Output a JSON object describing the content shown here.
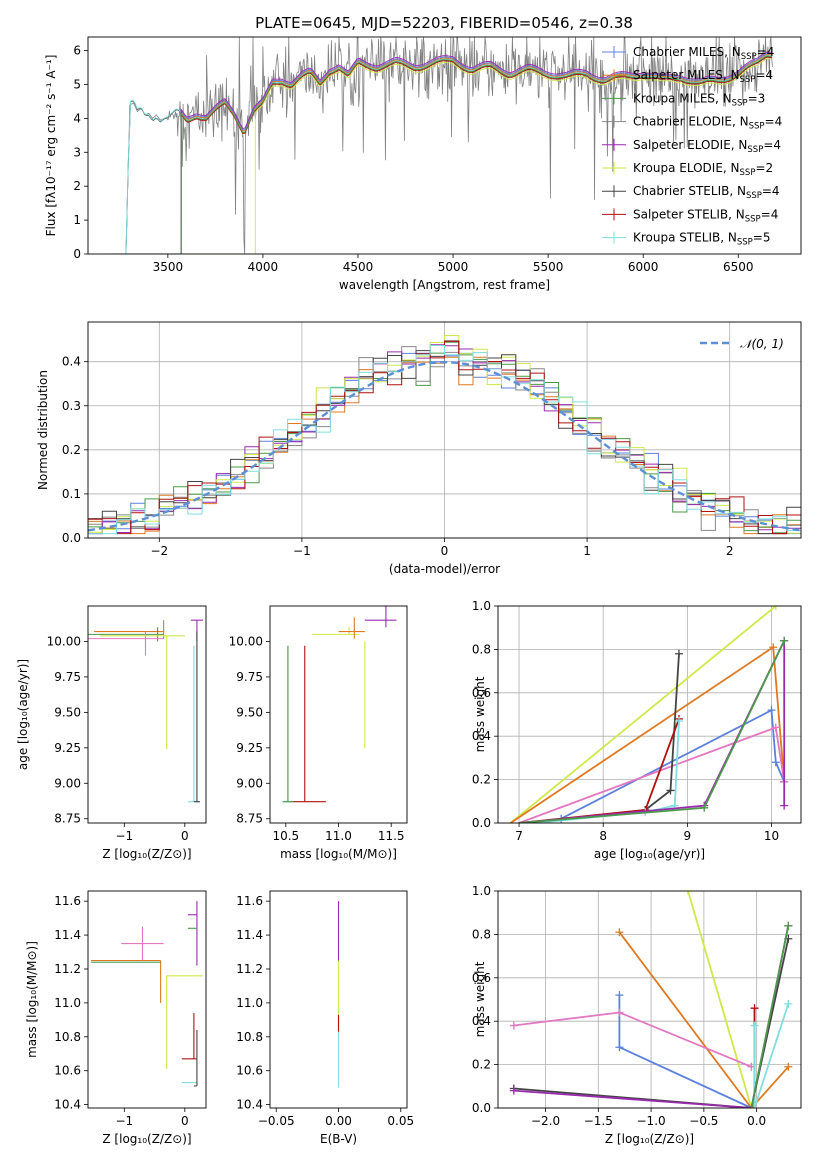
{
  "figure_title": "PLATE=0645, MJD=52203, FIBERID=0546, z=0.38",
  "colors": {
    "chabrier_miles": "#5b80dd",
    "salpeter_miles": "#e07820",
    "kroupa_miles": "#4a9a4a",
    "chabrier_elodie": "#888888",
    "salpeter_elodie": "#9b2ab0",
    "kroupa_elodie": "#cfe84a",
    "chabrier_stelib": "#444444",
    "salpeter_stelib": "#b01010",
    "kroupa_stelib": "#80dde0",
    "pink": "#e377c2",
    "normal": "#5b8fd6"
  },
  "chart_data": [
    {
      "id": "spectrum",
      "type": "line",
      "xlabel": "wavelength [Angstrom, rest frame]",
      "ylabel": "Flux [fλ10⁻¹⁷ erg cm⁻² s⁻¹ A⁻¹]",
      "xlim": [
        3080,
        6830
      ],
      "ylim": [
        0,
        6.4
      ],
      "xticks": [
        3500,
        4000,
        4500,
        5000,
        5500,
        6000,
        6500
      ],
      "yticks": [
        0,
        1,
        2,
        3,
        4,
        5,
        6
      ],
      "legend_position": "top-right",
      "legend": [
        {
          "name": "Chabrier MILES, NSSP=4",
          "color": "#5b80dd"
        },
        {
          "name": "Salpeter MILES, NSSP=4",
          "color": "#e07820"
        },
        {
          "name": "Kroupa MILES, NSSP=3",
          "color": "#4a9a4a"
        },
        {
          "name": "Chabrier ELODIE, NSSP=4",
          "color": "#888888"
        },
        {
          "name": "Salpeter ELODIE, NSSP=4",
          "color": "#9b2ab0"
        },
        {
          "name": "Kroupa ELODIE, NSSP=2",
          "color": "#cfe84a"
        },
        {
          "name": "Chabrier STELIB, NSSP=4",
          "color": "#444444"
        },
        {
          "name": "Salpeter STELIB, NSSP=4",
          "color": "#b01010"
        },
        {
          "name": "Kroupa STELIB, NSSP=5",
          "color": "#80dde0"
        }
      ],
      "model_curve": {
        "x": [
          3200,
          3280,
          3300,
          3320,
          3340,
          3360,
          3380,
          3400,
          3420,
          3440,
          3460,
          3480,
          3500,
          3550,
          3600,
          3650,
          3700,
          3750,
          3800,
          3850,
          3900,
          3950,
          4000,
          4050,
          4100,
          4150,
          4200,
          4250,
          4300,
          4350,
          4400,
          4450,
          4500,
          4600,
          4700,
          4800,
          4900,
          5000,
          5100,
          5200,
          5300,
          5400,
          5500,
          5600,
          5700,
          5800,
          5900,
          6000,
          6100,
          6200,
          6300,
          6400,
          6500,
          6600,
          6650
        ],
        "y": [
          0,
          0,
          4.4,
          4.45,
          4.2,
          4.3,
          4.1,
          4.15,
          4.0,
          4.1,
          3.95,
          4.0,
          4.0,
          4.2,
          3.9,
          4.1,
          4.0,
          4.2,
          4.4,
          4.1,
          3.6,
          4.2,
          4.4,
          5.0,
          5.1,
          5.0,
          5.2,
          5.3,
          5.0,
          5.4,
          5.5,
          5.2,
          5.6,
          5.5,
          5.6,
          5.5,
          5.6,
          5.7,
          5.4,
          5.5,
          5.3,
          5.4,
          5.3,
          5.2,
          5.3,
          5.1,
          5.2,
          5.3,
          5.1,
          5.2,
          5.0,
          5.1,
          5.3,
          5.6,
          5.9
        ]
      },
      "model_starts": {
        "chabrier_stelib": 3280,
        "salpeter": 3570,
        "kroupa_elodie": 3960
      }
    },
    {
      "id": "residuals",
      "type": "line",
      "xlabel": "(data-model)/error",
      "ylabel": "Normed distribution",
      "xlim": [
        -2.5,
        2.5
      ],
      "ylim": [
        0,
        0.49
      ],
      "xticks": [
        -2,
        -1,
        0,
        1,
        2
      ],
      "yticks": [
        0.0,
        0.1,
        0.2,
        0.3,
        0.4
      ],
      "grid": true,
      "legend_position": "top-right",
      "legend": [
        {
          "name": "𝒩(0, 1)",
          "color": "#5b8fd6",
          "style": "dashed"
        }
      ],
      "bin_width": 0.1
    },
    {
      "id": "age-vs-Z",
      "type": "scatter",
      "xlabel": "Z [log₁₀(Z/Z⊙)]",
      "ylabel": "age  [log₁₀(age/yr)]",
      "xlim": [
        -1.6,
        0.35
      ],
      "ylim": [
        8.72,
        10.25
      ],
      "xticks": [
        -1,
        0
      ],
      "yticks": [
        8.75,
        9.0,
        9.25,
        9.5,
        9.75,
        10.0
      ],
      "points": [
        {
          "x": -0.35,
          "y": 10.07,
          "x_err": [
            1.15,
            0.0
          ],
          "y_err": [
            0.05,
            0.08
          ],
          "color": "#e07820"
        },
        {
          "x": -0.45,
          "y": 10.05,
          "x_err": [
            1.15,
            0.1
          ],
          "y_err": [
            0.05,
            0.05
          ],
          "color": "#4a9a4a"
        },
        {
          "x": -0.65,
          "y": 10.02,
          "x_err": [
            0.95,
            0.3
          ],
          "y_err": [
            0.12,
            0.05
          ],
          "color": "#e377c2"
        },
        {
          "x": -0.3,
          "y": 10.04,
          "x_err": [
            1.1,
            0.3
          ],
          "y_err": [
            0.8,
            0.0
          ],
          "color": "#cfe84a"
        },
        {
          "x": 0.2,
          "y": 10.15,
          "x_err": [
            0.1,
            0.1
          ],
          "y_err": [
            0.15,
            0.0
          ],
          "color": "#9b2ab0"
        },
        {
          "x": 0.15,
          "y": 8.87,
          "x_err": [
            0.1,
            0.1
          ],
          "y_err": [
            0.0,
            1.1
          ],
          "color": "#80dde0"
        },
        {
          "x": 0.2,
          "y": 8.87,
          "x_err": [
            0.05,
            0.05
          ],
          "y_err": [
            0.0,
            1.2
          ],
          "color": "#444444"
        }
      ]
    },
    {
      "id": "age-vs-mass",
      "type": "scatter",
      "xlabel": "mass [log₁₀(M/M⊙)]",
      "ylabel": "",
      "xlim": [
        10.35,
        11.65
      ],
      "ylim": [
        8.72,
        10.25
      ],
      "xticks": [
        10.5,
        11.0,
        11.5
      ],
      "yticks": [
        8.75,
        9.0,
        9.25,
        9.5,
        9.75,
        10.0
      ],
      "points": [
        {
          "x": 11.1,
          "y": 10.05,
          "x_err": [
            0.35,
            0.1
          ],
          "y_err": [
            0.0,
            0.05
          ],
          "color": "#cfe84a"
        },
        {
          "x": 11.15,
          "y": 10.07,
          "x_err": [
            0.15,
            0.1
          ],
          "y_err": [
            0.05,
            0.1
          ],
          "color": "#e07820"
        },
        {
          "x": 11.45,
          "y": 10.15,
          "x_err": [
            0.2,
            0.1
          ],
          "y_err": [
            0.05,
            0.1
          ],
          "color": "#9b2ab0"
        },
        {
          "x": 11.25,
          "y": 9.85,
          "x_err": [
            0.0,
            0.0
          ],
          "y_err": [
            0.6,
            0.15
          ],
          "color": "#cfe84a"
        },
        {
          "x": 10.68,
          "y": 8.87,
          "x_err": [
            0.15,
            0.2
          ],
          "y_err": [
            0.0,
            1.1
          ],
          "color": "#b01010"
        },
        {
          "x": 10.52,
          "y": 8.87,
          "x_err": [
            0.05,
            0.05
          ],
          "y_err": [
            0.0,
            1.1
          ],
          "color": "#80dde0"
        },
        {
          "x": 10.52,
          "y": 8.87,
          "x_err": [
            0.05,
            0.05
          ],
          "y_err": [
            0.0,
            1.1
          ],
          "color": "#4a9a4a"
        }
      ]
    },
    {
      "id": "mass-weight-vs-age",
      "type": "line",
      "xlabel": "age  [log₁₀(age/yr)]",
      "ylabel": "mass weight",
      "xlim": [
        6.75,
        10.35
      ],
      "ylim": [
        0,
        1.0
      ],
      "xticks": [
        7,
        8,
        9,
        10
      ],
      "yticks": [
        0.0,
        0.2,
        0.4,
        0.6,
        0.8,
        1.0
      ],
      "grid": true,
      "series": [
        {
          "color": "#cfe84a",
          "points": [
            [
              6.9,
              0.0
            ],
            [
              10.05,
              1.0
            ]
          ]
        },
        {
          "color": "#e07820",
          "points": [
            [
              6.9,
              0.0
            ],
            [
              10.02,
              0.81
            ],
            [
              10.15,
              0.19
            ]
          ]
        },
        {
          "color": "#5b80dd",
          "points": [
            [
              7.5,
              0.02
            ],
            [
              10.0,
              0.52
            ],
            [
              10.05,
              0.28
            ],
            [
              10.15,
              0.19
            ]
          ]
        },
        {
          "color": "#e377c2",
          "points": [
            [
              7.0,
              0.0
            ],
            [
              10.05,
              0.44
            ],
            [
              10.15,
              0.19
            ]
          ]
        },
        {
          "color": "#444444",
          "points": [
            [
              7.1,
              0.0
            ],
            [
              8.5,
              0.06
            ],
            [
              8.8,
              0.15
            ],
            [
              8.9,
              0.78
            ]
          ]
        },
        {
          "color": "#b01010",
          "points": [
            [
              7.0,
              0.0
            ],
            [
              8.5,
              0.06
            ],
            [
              8.9,
              0.48
            ]
          ]
        },
        {
          "color": "#80dde0",
          "points": [
            [
              7.2,
              0.0
            ],
            [
              8.5,
              0.05
            ],
            [
              8.85,
              0.08
            ],
            [
              8.9,
              0.47
            ]
          ]
        },
        {
          "color": "#9b2ab0",
          "points": [
            [
              7.0,
              0.0
            ],
            [
              9.2,
              0.08
            ],
            [
              10.15,
              0.84
            ],
            [
              10.15,
              0.08
            ]
          ]
        },
        {
          "color": "#4a9a4a",
          "points": [
            [
              7.0,
              0.0
            ],
            [
              9.2,
              0.07
            ],
            [
              10.15,
              0.84
            ]
          ]
        }
      ]
    },
    {
      "id": "mass-vs-Z",
      "type": "scatter",
      "xlabel": "Z [log₁₀(Z/Z⊙)]",
      "ylabel": "mass [log₁₀(M/M⊙)]",
      "xlim": [
        -1.6,
        0.35
      ],
      "ylim": [
        10.38,
        11.66
      ],
      "xticks": [
        -1,
        0
      ],
      "yticks": [
        10.4,
        10.6,
        10.8,
        11.0,
        11.2,
        11.4,
        11.6
      ],
      "points": [
        {
          "x": -0.4,
          "y": 11.25,
          "x_err": [
            1.15,
            0.0
          ],
          "y_err": [
            0.25,
            0.0
          ],
          "color": "#e07820"
        },
        {
          "x": -0.4,
          "y": 11.24,
          "x_err": [
            1.15,
            0.0
          ],
          "y_err": [
            0.0,
            0.0
          ],
          "color": "#4a9a4a"
        },
        {
          "x": -0.7,
          "y": 11.35,
          "x_err": [
            0.35,
            0.35
          ],
          "y_err": [
            0.1,
            0.1
          ],
          "color": "#e377c2"
        },
        {
          "x": -0.3,
          "y": 11.16,
          "x_err": [
            0.0,
            0.6
          ],
          "y_err": [
            0.55,
            0.0
          ],
          "color": "#cfe84a"
        },
        {
          "x": 0.2,
          "y": 11.52,
          "x_err": [
            0.15,
            0.0
          ],
          "y_err": [
            0.3,
            0.08
          ],
          "color": "#9b2ab0"
        },
        {
          "x": 0.2,
          "y": 11.44,
          "x_err": [
            0.15,
            0.0
          ],
          "y_err": [
            0.0,
            0.0
          ],
          "color": "#4a9a4a"
        },
        {
          "x": 0.15,
          "y": 10.67,
          "x_err": [
            0.2,
            0.05
          ],
          "y_err": [
            0.0,
            0.27
          ],
          "color": "#b01010"
        },
        {
          "x": 0.15,
          "y": 10.53,
          "x_err": [
            0.2,
            0.05
          ],
          "y_err": [
            0.0,
            0.0
          ],
          "color": "#80dde0"
        },
        {
          "x": 0.2,
          "y": 10.51,
          "x_err": [
            0.05,
            0.0
          ],
          "y_err": [
            0.0,
            0.33
          ],
          "color": "#444444"
        }
      ]
    },
    {
      "id": "mass-vs-EBV",
      "type": "scatter",
      "xlabel": "E(B-V)",
      "ylabel": "",
      "xlim": [
        -0.055,
        0.055
      ],
      "ylim": [
        10.38,
        11.66
      ],
      "xticks": [
        -0.05,
        0.0,
        0.05
      ],
      "yticks": [
        10.4,
        10.6,
        10.8,
        11.0,
        11.2,
        11.4,
        11.6
      ],
      "points": [
        {
          "x": 0.0,
          "y": 11.5,
          "x_err": [
            0,
            0
          ],
          "y_err": [
            0.25,
            0.1
          ],
          "color": "#9b2ab0"
        },
        {
          "x": 0.0,
          "y": 11.1,
          "x_err": [
            0,
            0
          ],
          "y_err": [
            0.3,
            0.15
          ],
          "color": "#cfe84a"
        },
        {
          "x": 0.0,
          "y": 10.8,
          "x_err": [
            0,
            0
          ],
          "y_err": [
            0.3,
            0.1
          ],
          "color": "#80dde0"
        },
        {
          "x": 0.0,
          "y": 10.88,
          "x_err": [
            0,
            0
          ],
          "y_err": [
            0.05,
            0.05
          ],
          "color": "#b01010"
        }
      ]
    },
    {
      "id": "mass-weight-vs-Z",
      "type": "line",
      "xlabel": "Z [log₁₀(Z/Z⊙)]",
      "ylabel": "mass weight",
      "xlim": [
        -2.45,
        0.42
      ],
      "ylim": [
        0,
        1.0
      ],
      "xticks": [
        -2.0,
        -1.5,
        -1.0,
        -0.5,
        0.0
      ],
      "yticks": [
        0.0,
        0.2,
        0.4,
        0.6,
        0.8,
        1.0
      ],
      "grid": true,
      "series": [
        {
          "color": "#cfe84a",
          "points": [
            [
              -0.65,
              1.0
            ],
            [
              -0.05,
              0.0
            ]
          ]
        },
        {
          "color": "#e07820",
          "points": [
            [
              -1.3,
              0.81
            ],
            [
              -0.05,
              0.0
            ],
            [
              0.3,
              0.19
            ]
          ]
        },
        {
          "color": "#5b80dd",
          "points": [
            [
              -1.3,
              0.52
            ],
            [
              -1.3,
              0.28
            ],
            [
              -0.05,
              0.0
            ]
          ]
        },
        {
          "color": "#e377c2",
          "points": [
            [
              -2.3,
              0.38
            ],
            [
              -1.3,
              0.44
            ],
            [
              -0.05,
              0.19
            ]
          ]
        },
        {
          "color": "#444444",
          "points": [
            [
              -2.3,
              0.09
            ],
            [
              -0.05,
              0.0
            ],
            [
              0.3,
              0.78
            ]
          ]
        },
        {
          "color": "#b01010",
          "points": [
            [
              -0.02,
              0.46
            ],
            [
              -0.02,
              0.0
            ]
          ]
        },
        {
          "color": "#80dde0",
          "points": [
            [
              -0.02,
              0.38
            ],
            [
              -0.02,
              0.0
            ],
            [
              0.3,
              0.48
            ]
          ]
        },
        {
          "color": "#9b2ab0",
          "points": [
            [
              -2.3,
              0.08
            ],
            [
              -0.05,
              0.0
            ],
            [
              0.3,
              0.84
            ]
          ]
        },
        {
          "color": "#4a9a4a",
          "points": [
            [
              -0.05,
              0.0
            ],
            [
              0.3,
              0.84
            ]
          ]
        }
      ]
    }
  ]
}
